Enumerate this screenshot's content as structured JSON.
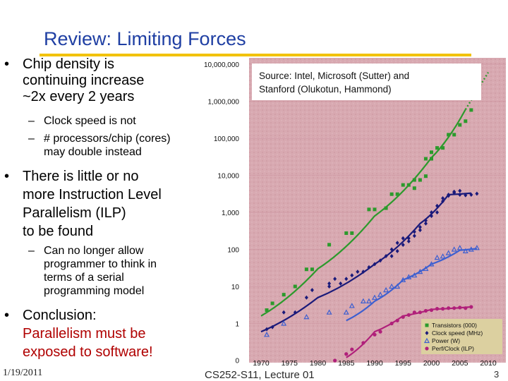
{
  "title": "Review: Limiting Forces",
  "bullets": {
    "b1_lines": [
      "Chip density is",
      "continuing increase",
      "~2x every 2 years"
    ],
    "b1_sub1": "Clock speed is not",
    "b1_sub2_lines": [
      "# processors/chip (cores)",
      "may double instead"
    ],
    "b2_lines": [
      "There is little or no",
      "more Instruction Level",
      "Parallelism (ILP)",
      "to be found"
    ],
    "b2_sub_lines": [
      "Can no longer allow",
      "programmer to think in",
      "terms of a serial",
      "programming model"
    ],
    "b3_line": "Conclusion:",
    "b3_red_lines": [
      "Parallelism must be",
      "exposed to software!"
    ]
  },
  "footer": {
    "date": "1/19/2011",
    "course": "CS252-S11, Lecture 01",
    "page": "3"
  },
  "chart_data": {
    "type": "scatter",
    "source": [
      "Source: Intel, Microsoft (Sutter) and",
      "Stanford (Olukotun, Hammond)"
    ],
    "y_scale": "log",
    "ylim": [
      0,
      10000000
    ],
    "y_tick_labels": [
      "10,000,000",
      "1,000,000",
      "100,000",
      "10,000",
      "1,000",
      "100",
      "10",
      "1",
      "0"
    ],
    "xlim": [
      1970,
      2010
    ],
    "x_tick_labels": [
      "1970",
      "1975",
      "1980",
      "1985",
      "1990",
      "1995",
      "2000",
      "2005",
      "2010"
    ],
    "legend": [
      "Transistors (000)",
      "Clock speed (MHz)",
      "Power (W)",
      "Perf/Clock (ILP)"
    ],
    "legend_position": "bottom-right",
    "colors": {
      "transistors": "#2c9a2c",
      "clock": "#1a1a7a",
      "power": "#3d5fd0",
      "ilp": "#b0207a",
      "background": "#d9a9b1",
      "grid": "#c9909b"
    },
    "series": [
      {
        "name": "Transistors (000)",
        "points": [
          [
            1971,
            2.3
          ],
          [
            1972,
            3.5
          ],
          [
            1974,
            6
          ],
          [
            1976,
            10
          ],
          [
            1978,
            29
          ],
          [
            1979,
            29
          ],
          [
            1982,
            134
          ],
          [
            1985,
            275
          ],
          [
            1986,
            275
          ],
          [
            1989,
            1200
          ],
          [
            1990,
            1200
          ],
          [
            1992,
            1300
          ],
          [
            1993,
            3100
          ],
          [
            1994,
            3100
          ],
          [
            1995,
            5500
          ],
          [
            1996,
            5500
          ],
          [
            1997,
            7500
          ],
          [
            1997,
            4500
          ],
          [
            1998,
            7500
          ],
          [
            1999,
            9500
          ],
          [
            1999,
            28000
          ],
          [
            2000,
            42000
          ],
          [
            2000,
            28000
          ],
          [
            2001,
            55000
          ],
          [
            2002,
            55000
          ],
          [
            2003,
            125000
          ],
          [
            2004,
            125000
          ],
          [
            2005,
            230000
          ],
          [
            2006,
            290000
          ],
          [
            2007,
            580000
          ],
          [
            2008,
            1700000
          ]
        ],
        "trend": [
          [
            1970,
            1.6
          ],
          [
            1980,
            30
          ],
          [
            1990,
            800
          ],
          [
            2000,
            30000
          ],
          [
            2006,
            600000
          ]
        ],
        "projection": [
          [
            2006,
            600000
          ],
          [
            2010,
            6000000
          ]
        ]
      },
      {
        "name": "Clock speed (MHz)",
        "points": [
          [
            1971,
            0.7
          ],
          [
            1972,
            0.8
          ],
          [
            1974,
            2
          ],
          [
            1976,
            2
          ],
          [
            1978,
            5
          ],
          [
            1979,
            8
          ],
          [
            1982,
            10
          ],
          [
            1982,
            12
          ],
          [
            1983,
            16
          ],
          [
            1984,
            12
          ],
          [
            1985,
            16
          ],
          [
            1986,
            20
          ],
          [
            1987,
            25
          ],
          [
            1988,
            25
          ],
          [
            1989,
            33
          ],
          [
            1990,
            40
          ],
          [
            1991,
            50
          ],
          [
            1992,
            66
          ],
          [
            1993,
            66
          ],
          [
            1993,
            100
          ],
          [
            1994,
            90
          ],
          [
            1994,
            150
          ],
          [
            1995,
            133
          ],
          [
            1995,
            200
          ],
          [
            1996,
            200
          ],
          [
            1996,
            166
          ],
          [
            1997,
            300
          ],
          [
            1997,
            233
          ],
          [
            1998,
            400
          ],
          [
            1998,
            333
          ],
          [
            1999,
            500
          ],
          [
            1999,
            600
          ],
          [
            2000,
            800
          ],
          [
            2000,
            1000
          ],
          [
            2001,
            1500
          ],
          [
            2001,
            1000
          ],
          [
            2002,
            2000
          ],
          [
            2002,
            2400
          ],
          [
            2003,
            3000
          ],
          [
            2003,
            2800
          ],
          [
            2004,
            3400
          ],
          [
            2004,
            3600
          ],
          [
            2005,
            3800
          ],
          [
            2005,
            3000
          ],
          [
            2006,
            2900
          ],
          [
            2007,
            3000
          ],
          [
            2008,
            3200
          ]
        ],
        "trend": [
          [
            1970,
            0.6
          ],
          [
            1980,
            5
          ],
          [
            1990,
            40
          ],
          [
            1998,
            500
          ],
          [
            2003,
            3000
          ],
          [
            2007,
            3300
          ]
        ]
      },
      {
        "name": "Power (W)",
        "points": [
          [
            1971,
            0.5
          ],
          [
            1974,
            1
          ],
          [
            1978,
            1.5
          ],
          [
            1982,
            2
          ],
          [
            1985,
            2
          ],
          [
            1986,
            3
          ],
          [
            1988,
            4
          ],
          [
            1989,
            4
          ],
          [
            1990,
            5
          ],
          [
            1991,
            6
          ],
          [
            1992,
            8
          ],
          [
            1993,
            10
          ],
          [
            1994,
            10
          ],
          [
            1995,
            15
          ],
          [
            1996,
            18
          ],
          [
            1997,
            20
          ],
          [
            1998,
            25
          ],
          [
            1999,
            30
          ],
          [
            2000,
            40
          ],
          [
            2001,
            60
          ],
          [
            2002,
            65
          ],
          [
            2003,
            80
          ],
          [
            2004,
            100
          ],
          [
            2005,
            110
          ],
          [
            2006,
            90
          ],
          [
            2007,
            100
          ],
          [
            2008,
            110
          ]
        ],
        "trend": [
          [
            1985,
            1.2
          ],
          [
            1990,
            4
          ],
          [
            1995,
            15
          ],
          [
            2000,
            40
          ],
          [
            2005,
            95
          ],
          [
            2008,
            105
          ]
        ]
      },
      {
        "name": "Perf/Clock (ILP)",
        "points": [
          [
            1983,
            0.1
          ],
          [
            1985,
            0.15
          ],
          [
            1986,
            0.2
          ],
          [
            1988,
            0.3
          ],
          [
            1990,
            0.5
          ],
          [
            1991,
            0.6
          ],
          [
            1993,
            1
          ],
          [
            1994,
            1.2
          ],
          [
            1995,
            1.5
          ],
          [
            1996,
            1.7
          ],
          [
            1997,
            2
          ],
          [
            1998,
            2
          ],
          [
            1999,
            2.2
          ],
          [
            2000,
            2.3
          ],
          [
            2001,
            2.5
          ],
          [
            2002,
            2.5
          ],
          [
            2003,
            2.6
          ],
          [
            2004,
            2.6
          ],
          [
            2005,
            2.7
          ],
          [
            2006,
            2.6
          ],
          [
            2007,
            2.8
          ]
        ],
        "trend": [
          [
            1985,
            0.12
          ],
          [
            1990,
            0.6
          ],
          [
            1995,
            1.6
          ],
          [
            2000,
            2.4
          ],
          [
            2007,
            2.8
          ]
        ]
      }
    ]
  }
}
